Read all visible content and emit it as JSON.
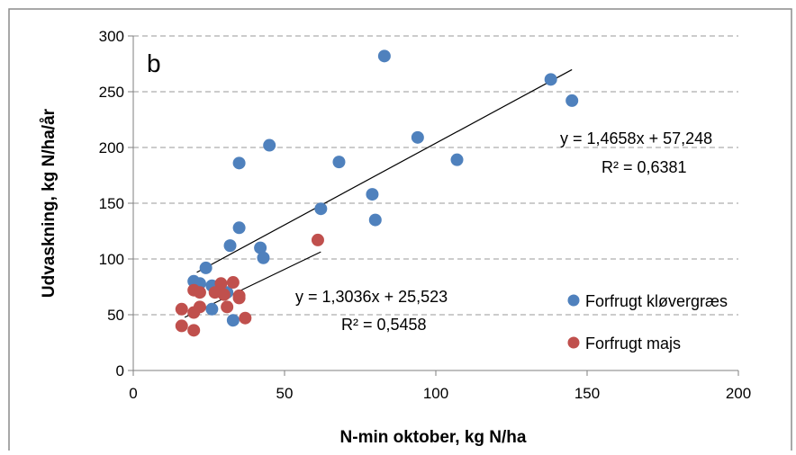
{
  "chart_data": {
    "type": "scatter",
    "panel_label": "b",
    "xlabel": "N-min oktober, kg N/ha",
    "ylabel": "Udvaskning, kg N/ha/år",
    "xlim": [
      0,
      200
    ],
    "ylim": [
      0,
      300
    ],
    "x_ticks": [
      0,
      50,
      100,
      150,
      200
    ],
    "y_ticks": [
      0,
      50,
      100,
      150,
      200,
      250,
      300
    ],
    "grid": "horizontal-dashed",
    "legend_position": "right",
    "series": [
      {
        "name": "Forfrugt kløvergræs",
        "color": "#4f81bd",
        "points": [
          [
            83,
            282
          ],
          [
            138,
            261
          ],
          [
            145,
            242
          ],
          [
            45,
            202
          ],
          [
            94,
            209
          ],
          [
            107,
            189
          ],
          [
            35,
            186
          ],
          [
            68,
            187
          ],
          [
            79,
            158
          ],
          [
            62,
            145
          ],
          [
            80,
            135
          ],
          [
            35,
            128
          ],
          [
            32,
            112
          ],
          [
            42,
            110
          ],
          [
            43,
            101
          ],
          [
            24,
            92
          ],
          [
            20,
            80
          ],
          [
            22,
            78
          ],
          [
            26,
            76
          ],
          [
            31,
            70
          ],
          [
            26,
            55
          ],
          [
            33,
            45
          ]
        ],
        "trendline": {
          "slope": 1.4658,
          "intercept": 57.248,
          "x_range": [
            21,
            145
          ],
          "equation": "y = 1,4658x + 57,248",
          "r2": "R² = 0,6381"
        }
      },
      {
        "name": "Forfrugt majs",
        "color": "#c0504d",
        "points": [
          [
            61,
            117
          ],
          [
            33,
            79
          ],
          [
            29,
            78
          ],
          [
            20,
            72
          ],
          [
            22,
            70
          ],
          [
            27,
            70
          ],
          [
            30,
            68
          ],
          [
            35,
            67
          ],
          [
            35,
            65
          ],
          [
            16,
            55
          ],
          [
            22,
            57
          ],
          [
            31,
            57
          ],
          [
            20,
            52
          ],
          [
            37,
            47
          ],
          [
            16,
            40
          ],
          [
            20,
            36
          ]
        ],
        "trendline": {
          "slope": 1.3036,
          "intercept": 25.523,
          "x_range": [
            17,
            62
          ],
          "equation": "y = 1,3036x + 25,523",
          "r2": "R² = 0,5458"
        }
      }
    ]
  }
}
